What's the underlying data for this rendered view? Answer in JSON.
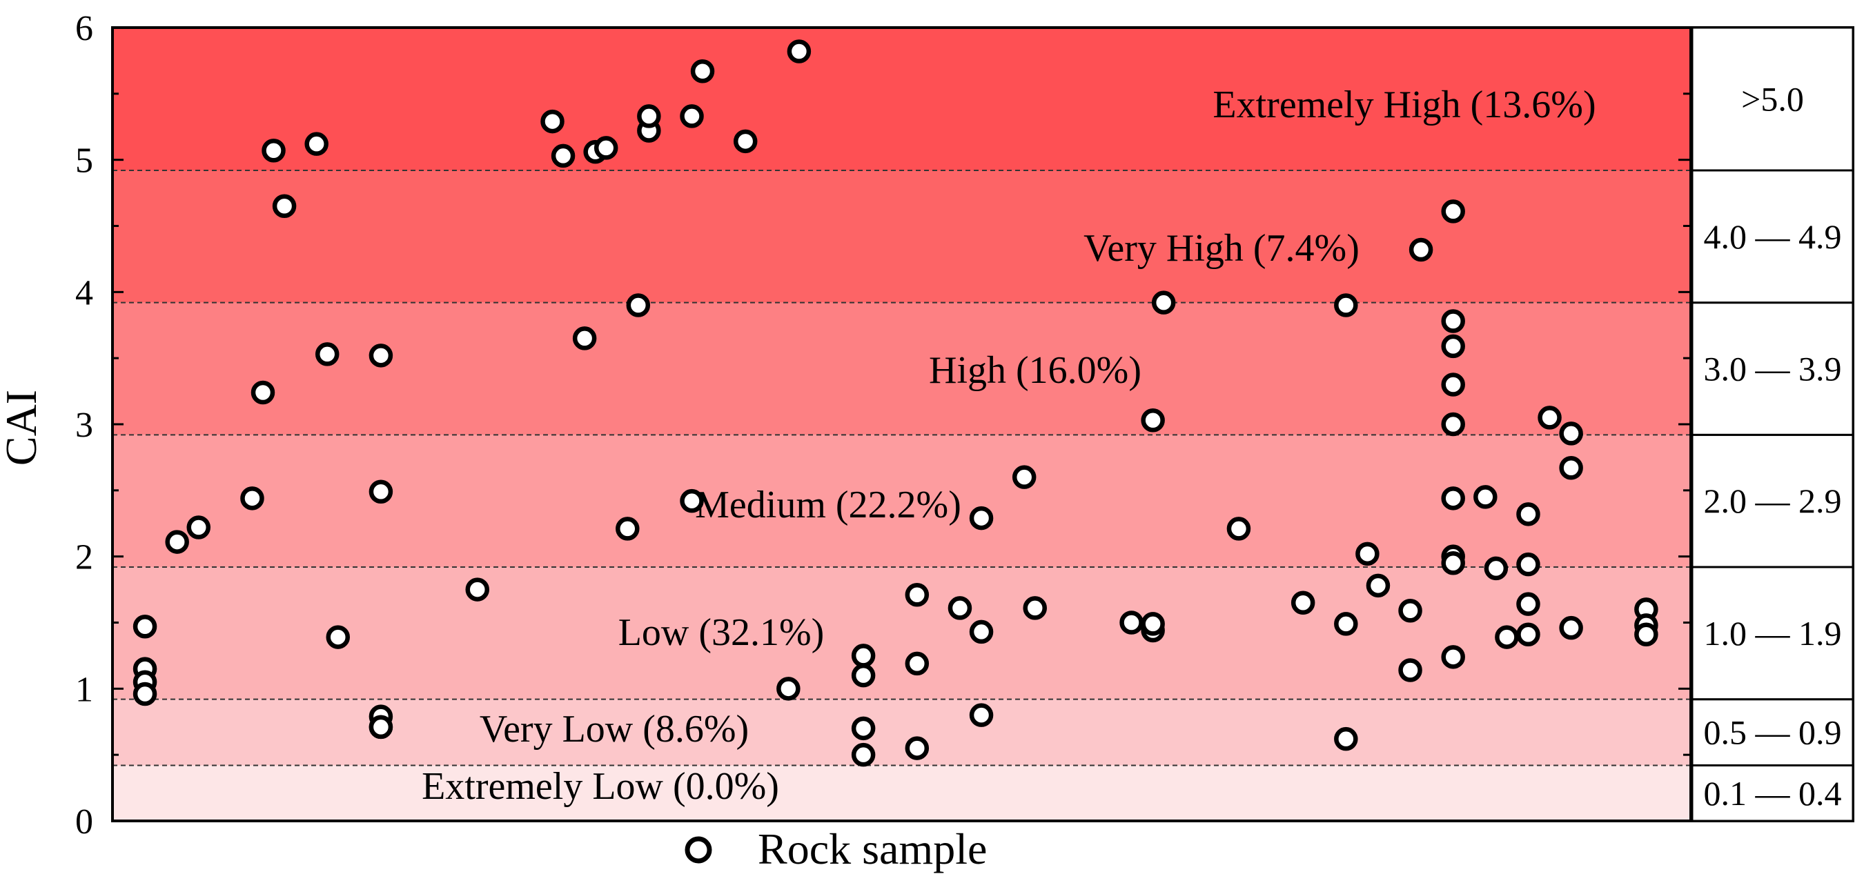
{
  "chart_data": {
    "type": "scatter",
    "title": "",
    "xlabel": "",
    "ylabel": "CAI",
    "ylim": [
      0,
      6
    ],
    "yticks": [
      "0",
      "1",
      "2",
      "3",
      "4",
      "5",
      "6"
    ],
    "grid": false,
    "legend": {
      "placement": "bottom-center",
      "entries": [
        "Rock sample"
      ]
    },
    "bands": [
      {
        "name": "Extremely Low",
        "label": "Extremely Low (0.0%)",
        "range_label": "0.1 — 0.4",
        "y0": 0.0,
        "y1": 0.42,
        "color": "#fde6e7"
      },
      {
        "name": "Very Low",
        "label": "Very Low (8.6%)",
        "range_label": "0.5 — 0.9",
        "y0": 0.42,
        "y1": 0.92,
        "color": "#fcc7ca"
      },
      {
        "name": "Low",
        "label": "Low (32.1%)",
        "range_label": "1.0 — 1.9",
        "y0": 0.92,
        "y1": 1.92,
        "color": "#fcb2b5"
      },
      {
        "name": "Medium",
        "label": "Medium (22.2%)",
        "range_label": "2.0 — 2.9",
        "y0": 1.92,
        "y1": 2.92,
        "color": "#fd9c9f"
      },
      {
        "name": "High",
        "label": "High (16.0%)",
        "range_label": "3.0 — 3.9",
        "y0": 2.92,
        "y1": 3.92,
        "color": "#fd8083"
      },
      {
        "name": "Very High",
        "label": "Very High (7.4%)",
        "range_label": "4.0 — 4.9",
        "y0": 3.92,
        "y1": 4.92,
        "color": "#fd6466"
      },
      {
        "name": "Extremely High",
        "label": "Extremely High (13.6%)",
        "range_label": ">5.0",
        "y0": 4.92,
        "y1": 6.0,
        "color": "#fe5054"
      }
    ],
    "series": [
      {
        "name": "Rock sample",
        "x": [
          2,
          2,
          2,
          2,
          5,
          7,
          12,
          13,
          14,
          15,
          18,
          19,
          20,
          24,
          24,
          24,
          24,
          24,
          33,
          40,
          41,
          43,
          44,
          45,
          47,
          48,
          49,
          49,
          53,
          53,
          54,
          58,
          62,
          63,
          69,
          69,
          69,
          69,
          74,
          74,
          74,
          78,
          80,
          80,
          80,
          84,
          85,
          94,
          96,
          96,
          96,
          97,
          104,
          110,
          114,
          114,
          114,
          116,
          117,
          120,
          120,
          121,
          124,
          124,
          124,
          124,
          124,
          124,
          124,
          124,
          124,
          127,
          128,
          129,
          131,
          131,
          131,
          131,
          133,
          135,
          135,
          135,
          142,
          142,
          142
        ],
        "y": [
          1.47,
          1.15,
          1.05,
          0.96,
          2.11,
          2.22,
          2.44,
          3.24,
          5.07,
          4.65,
          5.12,
          3.53,
          1.39,
          3.52,
          2.49,
          0.79,
          0.71,
          0.71,
          1.75,
          5.29,
          5.03,
          3.65,
          5.06,
          5.09,
          2.21,
          3.9,
          5.22,
          5.33,
          2.42,
          5.33,
          5.67,
          5.14,
          1.0,
          5.82,
          1.25,
          1.1,
          0.7,
          0.5,
          1.71,
          1.19,
          0.55,
          1.61,
          2.29,
          1.43,
          0.8,
          2.6,
          1.61,
          1.5,
          1.44,
          3.03,
          1.49,
          3.92,
          2.21,
          1.65,
          1.49,
          3.9,
          0.62,
          2.02,
          1.78,
          1.59,
          1.14,
          4.32,
          3.78,
          3.3,
          3.0,
          2.44,
          2.0,
          1.24,
          3.59,
          1.95,
          4.61,
          2.45,
          1.91,
          1.39,
          1.64,
          2.32,
          1.94,
          1.41,
          3.05,
          2.93,
          2.67,
          1.46,
          1.6,
          1.48,
          1.41
        ]
      }
    ]
  }
}
